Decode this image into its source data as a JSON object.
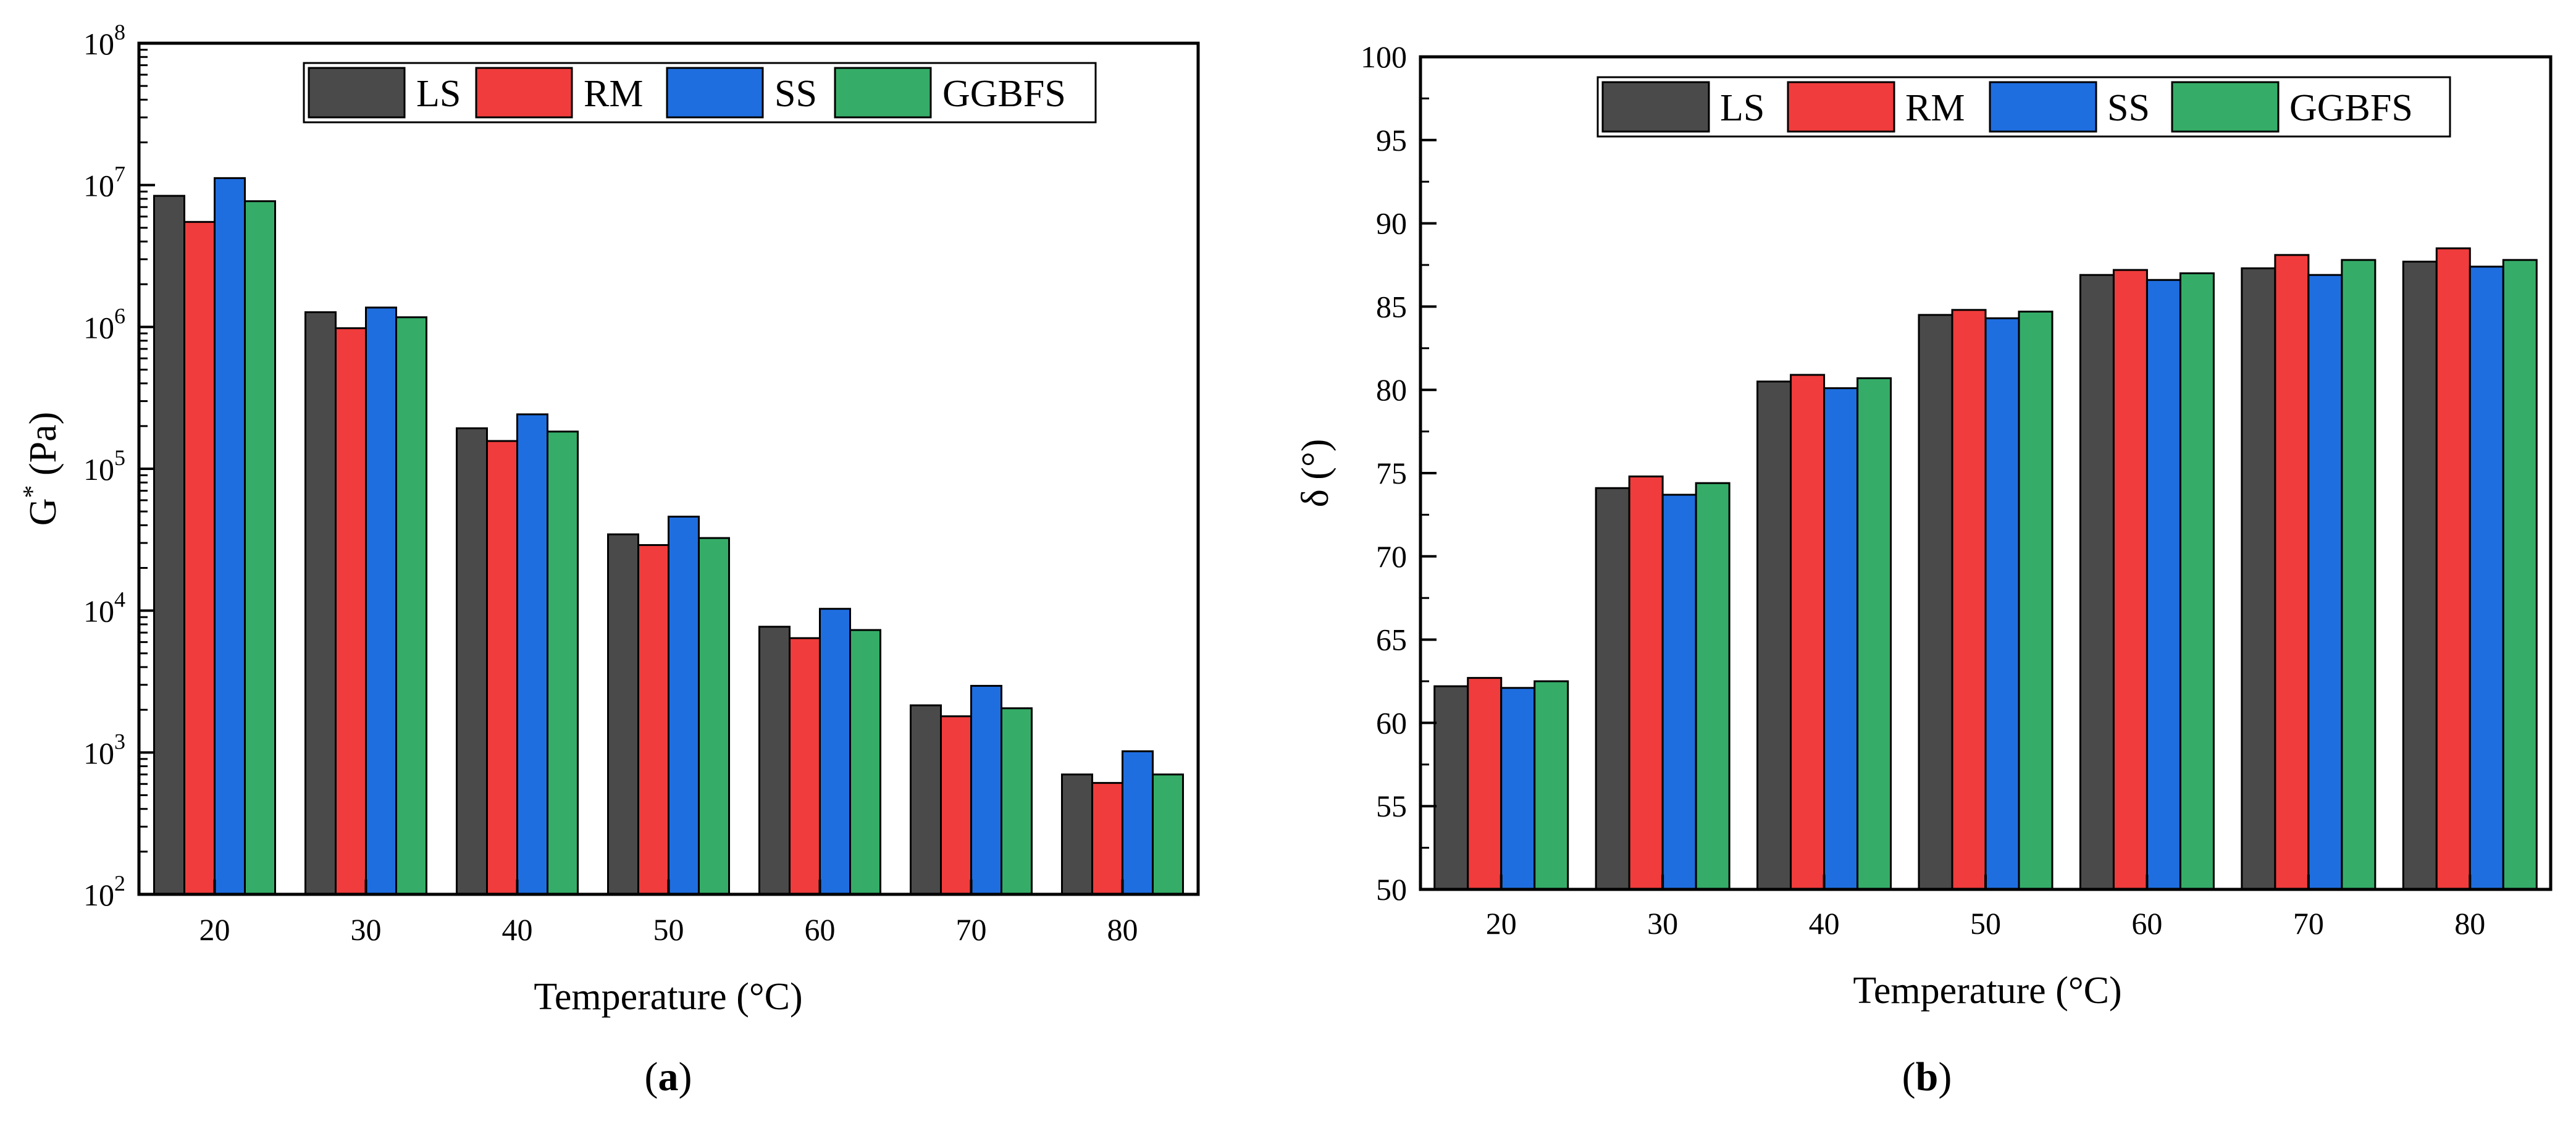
{
  "chart_data": [
    {
      "type": "bar",
      "panel_label": "(a)",
      "panel_letter": "a",
      "xlabel": "Temperature (°C)",
      "ylabel_main": "G",
      "ylabel_sup": "*",
      "ylabel_unit": " (Pa)",
      "yscale": "log",
      "ylim": [
        100,
        100000000
      ],
      "y_ticks": [
        {
          "base": "10",
          "exp": "2"
        },
        {
          "base": "10",
          "exp": "3"
        },
        {
          "base": "10",
          "exp": "4"
        },
        {
          "base": "10",
          "exp": "5"
        },
        {
          "base": "10",
          "exp": "6"
        },
        {
          "base": "10",
          "exp": "7"
        },
        {
          "base": "10",
          "exp": "8"
        }
      ],
      "categories": [
        "20",
        "30",
        "40",
        "50",
        "60",
        "70",
        "80"
      ],
      "legend_position": "top",
      "series": [
        {
          "name": "LS",
          "color": "#4a4a4a",
          "values": [
            8400000,
            1270000,
            193000,
            34500,
            7700,
            2150,
            700
          ]
        },
        {
          "name": "RM",
          "color": "#f03c3c",
          "values": [
            5500000,
            980000,
            157000,
            29000,
            6400,
            1800,
            610
          ]
        },
        {
          "name": "SS",
          "color": "#1f6ee0",
          "values": [
            11200000,
            1370000,
            242000,
            46000,
            10300,
            2950,
            1020
          ]
        },
        {
          "name": "GGBFS",
          "color": "#35ad68",
          "values": [
            7700000,
            1170000,
            183000,
            32500,
            7300,
            2050,
            700
          ]
        }
      ]
    },
    {
      "type": "bar",
      "panel_label": "(b)",
      "panel_letter": "b",
      "xlabel": "Temperature (°C)",
      "ylabel": "δ (°)",
      "yscale": "linear",
      "ylim": [
        50,
        100
      ],
      "y_ticks": [
        "50",
        "55",
        "60",
        "65",
        "70",
        "75",
        "80",
        "85",
        "90",
        "95",
        "100"
      ],
      "categories": [
        "20",
        "30",
        "40",
        "50",
        "60",
        "70",
        "80"
      ],
      "legend_position": "top",
      "series": [
        {
          "name": "LS",
          "color": "#4a4a4a",
          "values": [
            62.2,
            74.1,
            80.5,
            84.5,
            86.9,
            87.3,
            87.7
          ]
        },
        {
          "name": "RM",
          "color": "#f03c3c",
          "values": [
            62.7,
            74.8,
            80.9,
            84.8,
            87.2,
            88.1,
            88.5
          ]
        },
        {
          "name": "SS",
          "color": "#1f6ee0",
          "values": [
            62.1,
            73.7,
            80.1,
            84.3,
            86.6,
            86.9,
            87.4
          ]
        },
        {
          "name": "GGBFS",
          "color": "#35ad68",
          "values": [
            62.5,
            74.4,
            80.7,
            84.7,
            87.0,
            87.8,
            87.8
          ]
        }
      ]
    }
  ]
}
